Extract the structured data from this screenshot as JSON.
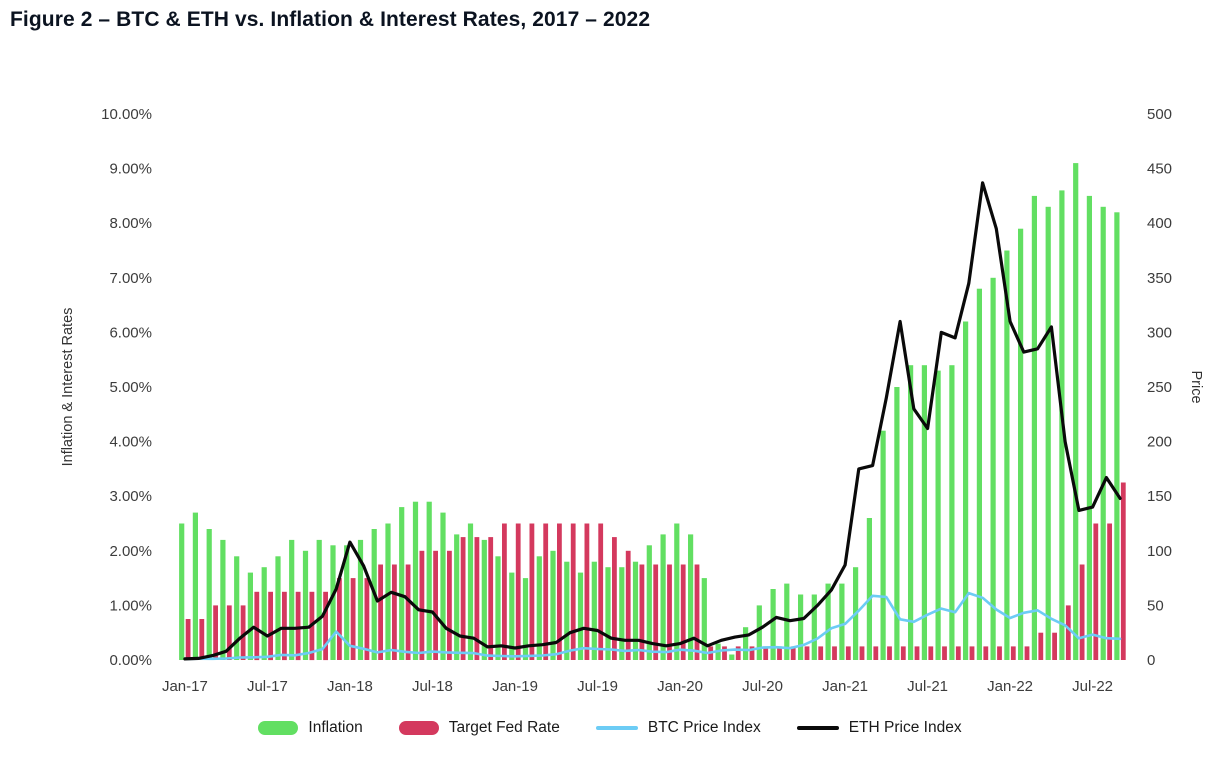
{
  "title": "Figure 2 – BTC & ETH vs. Inflation & Interest Rates, 2017 – 2022",
  "chart_data": {
    "type": "combo",
    "title": "Figure 2 – BTC & ETH vs. Inflation & Interest Rates, 2017 – 2022",
    "left_axis": {
      "label": "Inflation & Interest Rates",
      "min": 0,
      "max": 10,
      "tick_labels": [
        "0.00%",
        "1.00%",
        "2.00%",
        "3.00%",
        "4.00%",
        "5.00%",
        "6.00%",
        "7.00%",
        "8.00%",
        "9.00%",
        "10.00%"
      ]
    },
    "right_axis": {
      "label": "Price",
      "min": 0,
      "max": 500,
      "tick_step": 50,
      "tick_labels": [
        "0",
        "50",
        "100",
        "150",
        "200",
        "250",
        "300",
        "350",
        "400",
        "450",
        "500"
      ]
    },
    "x_ticks": [
      "Jan-17",
      "Jul-17",
      "Jan-18",
      "Jul-18",
      "Jan-19",
      "Jul-19",
      "Jan-20",
      "Jul-20",
      "Jan-21",
      "Jul-21",
      "Jan-22",
      "Jul-22"
    ],
    "x_tick_every": 6,
    "grid": false,
    "legend_position": "bottom",
    "months": [
      "Jan-17",
      "Feb-17",
      "Mar-17",
      "Apr-17",
      "May-17",
      "Jun-17",
      "Jul-17",
      "Aug-17",
      "Sep-17",
      "Oct-17",
      "Nov-17",
      "Dec-17",
      "Jan-18",
      "Feb-18",
      "Mar-18",
      "Apr-18",
      "May-18",
      "Jun-18",
      "Jul-18",
      "Aug-18",
      "Sep-18",
      "Oct-18",
      "Nov-18",
      "Dec-18",
      "Jan-19",
      "Feb-19",
      "Mar-19",
      "Apr-19",
      "May-19",
      "Jun-19",
      "Jul-19",
      "Aug-19",
      "Sep-19",
      "Oct-19",
      "Nov-19",
      "Dec-19",
      "Jan-20",
      "Feb-20",
      "Mar-20",
      "Apr-20",
      "May-20",
      "Jun-20",
      "Jul-20",
      "Aug-20",
      "Sep-20",
      "Oct-20",
      "Nov-20",
      "Dec-20",
      "Jan-21",
      "Feb-21",
      "Mar-21",
      "Apr-21",
      "May-21",
      "Jun-21",
      "Jul-21",
      "Aug-21",
      "Sep-21",
      "Oct-21",
      "Nov-21",
      "Dec-21",
      "Jan-22",
      "Feb-22",
      "Mar-22",
      "Apr-22",
      "May-22",
      "Jun-22",
      "Jul-22",
      "Aug-22",
      "Sep-22"
    ],
    "series": [
      {
        "name": "Inflation",
        "type": "bar",
        "axis": "left",
        "unit": "%",
        "color": "#62df62",
        "values": [
          2.5,
          2.7,
          2.4,
          2.2,
          1.9,
          1.6,
          1.7,
          1.9,
          2.2,
          2.0,
          2.2,
          2.1,
          2.1,
          2.2,
          2.4,
          2.5,
          2.8,
          2.9,
          2.9,
          2.7,
          2.3,
          2.5,
          2.2,
          1.9,
          1.6,
          1.5,
          1.9,
          2.0,
          1.8,
          1.6,
          1.8,
          1.7,
          1.7,
          1.8,
          2.1,
          2.3,
          2.5,
          2.3,
          1.5,
          0.3,
          0.1,
          0.6,
          1.0,
          1.3,
          1.4,
          1.2,
          1.2,
          1.4,
          1.4,
          1.7,
          2.6,
          4.2,
          5.0,
          5.4,
          5.4,
          5.3,
          5.4,
          6.2,
          6.8,
          7.0,
          7.5,
          7.9,
          8.5,
          8.3,
          8.6,
          9.1,
          8.5,
          8.3,
          8.2
        ]
      },
      {
        "name": "Target Fed Rate",
        "type": "bar",
        "axis": "left",
        "unit": "%",
        "color": "#d4395e",
        "values": [
          0.75,
          0.75,
          1.0,
          1.0,
          1.0,
          1.25,
          1.25,
          1.25,
          1.25,
          1.25,
          1.25,
          1.5,
          1.5,
          1.5,
          1.75,
          1.75,
          1.75,
          2.0,
          2.0,
          2.0,
          2.25,
          2.25,
          2.25,
          2.5,
          2.5,
          2.5,
          2.5,
          2.5,
          2.5,
          2.5,
          2.5,
          2.25,
          2.0,
          1.75,
          1.75,
          1.75,
          1.75,
          1.75,
          0.25,
          0.25,
          0.25,
          0.25,
          0.25,
          0.25,
          0.25,
          0.25,
          0.25,
          0.25,
          0.25,
          0.25,
          0.25,
          0.25,
          0.25,
          0.25,
          0.25,
          0.25,
          0.25,
          0.25,
          0.25,
          0.25,
          0.25,
          0.25,
          0.5,
          0.5,
          1.0,
          1.75,
          2.5,
          2.5,
          3.25
        ]
      },
      {
        "name": "BTC Price Index",
        "type": "line",
        "axis": "right",
        "color": "#6cccf5",
        "values": [
          1.0,
          1.2,
          1.1,
          1.4,
          2.3,
          2.5,
          2.9,
          4.7,
          4.3,
          6.4,
          10.0,
          26.0,
          13.0,
          10.3,
          7.0,
          9.2,
          7.5,
          6.4,
          7.7,
          7.0,
          6.6,
          6.3,
          4.0,
          3.7,
          3.4,
          3.8,
          4.1,
          5.3,
          8.6,
          10.8,
          10.1,
          9.6,
          8.3,
          9.2,
          7.6,
          7.2,
          9.4,
          8.5,
          6.4,
          8.7,
          9.5,
          9.1,
          11.4,
          11.7,
          10.8,
          13.8,
          19.7,
          29.0,
          33.1,
          45.2,
          58.8,
          57.7,
          37.3,
          35.0,
          41.5,
          47.1,
          43.8,
          61.3,
          57.0,
          46.2,
          38.5,
          43.2,
          45.5,
          37.7,
          31.8,
          19.9,
          23.3,
          20.0,
          19.4
        ]
      },
      {
        "name": "ETH Price Index",
        "type": "line",
        "axis": "right",
        "color": "#0a0a0a",
        "values": [
          1,
          1.5,
          4,
          8,
          20,
          30,
          22,
          29,
          29,
          30,
          40,
          65,
          108,
          86,
          54,
          62,
          58,
          46,
          44,
          29,
          22,
          20,
          12,
          13,
          11,
          13,
          14,
          16,
          25,
          29,
          27,
          20,
          18,
          18,
          15,
          13,
          15,
          20,
          13,
          18,
          21,
          23,
          30,
          39,
          36,
          38,
          50,
          64,
          87,
          175,
          178,
          240,
          310,
          230,
          212,
          300,
          295,
          345,
          437,
          395,
          310,
          282,
          285,
          305,
          200,
          137,
          140,
          167,
          148
        ]
      }
    ],
    "legend": [
      {
        "label": "Inflation",
        "color": "#62df62",
        "swatch": "bar"
      },
      {
        "label": "Target Fed Rate",
        "color": "#d4395e",
        "swatch": "bar"
      },
      {
        "label": "BTC Price Index",
        "color": "#6cccf5",
        "swatch": "line"
      },
      {
        "label": "ETH Price Index",
        "color": "#0a0a0a",
        "swatch": "line"
      }
    ]
  }
}
